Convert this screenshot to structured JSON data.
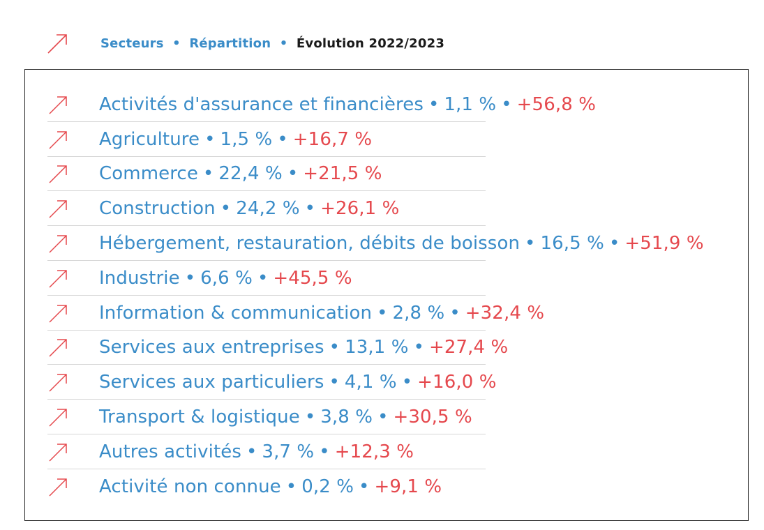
{
  "colors": {
    "accent_blue": "#3a8cc8",
    "accent_red": "#e5484d",
    "text_dark": "#1a1a1a",
    "divider": "#d6d6d6"
  },
  "icons": {
    "trend": "trend-up-arrow-icon"
  },
  "header": {
    "crumb_1": "Secteurs",
    "crumb_2": "Répartition",
    "crumb_3": "Évolution 2022/2023",
    "separator": "•"
  },
  "sectors": [
    {
      "name": "Activités d'assurance et financières",
      "share": "1,1 %",
      "change": "+56,8 %"
    },
    {
      "name": "Agriculture",
      "share": "1,5 %",
      "change": "+16,7 %"
    },
    {
      "name": "Commerce",
      "share": "22,4 %",
      "change": "+21,5 %"
    },
    {
      "name": "Construction",
      "share": "24,2 %",
      "change": "+26,1 %"
    },
    {
      "name": "Hébergement, restauration, débits de boisson",
      "share": "16,5 %",
      "change": "+51,9 %"
    },
    {
      "name": "Industrie",
      "share": "6,6 %",
      "change": "+45,5 %"
    },
    {
      "name": "Information & communication",
      "share": "2,8 %",
      "change": "+32,4 %"
    },
    {
      "name": "Services aux entreprises",
      "share": "13,1 %",
      "change": "+27,4 %"
    },
    {
      "name": "Services aux particuliers",
      "share": "4,1 %",
      "change": "+16,0 %"
    },
    {
      "name": "Transport & logistique",
      "share": "3,8 %",
      "change": "+30,5 %"
    },
    {
      "name": "Autres activités",
      "share": "3,7 %",
      "change": "+12,3 %"
    },
    {
      "name": "Activité non connue",
      "share": "0,2 %",
      "change": "+9,1 %"
    }
  ]
}
